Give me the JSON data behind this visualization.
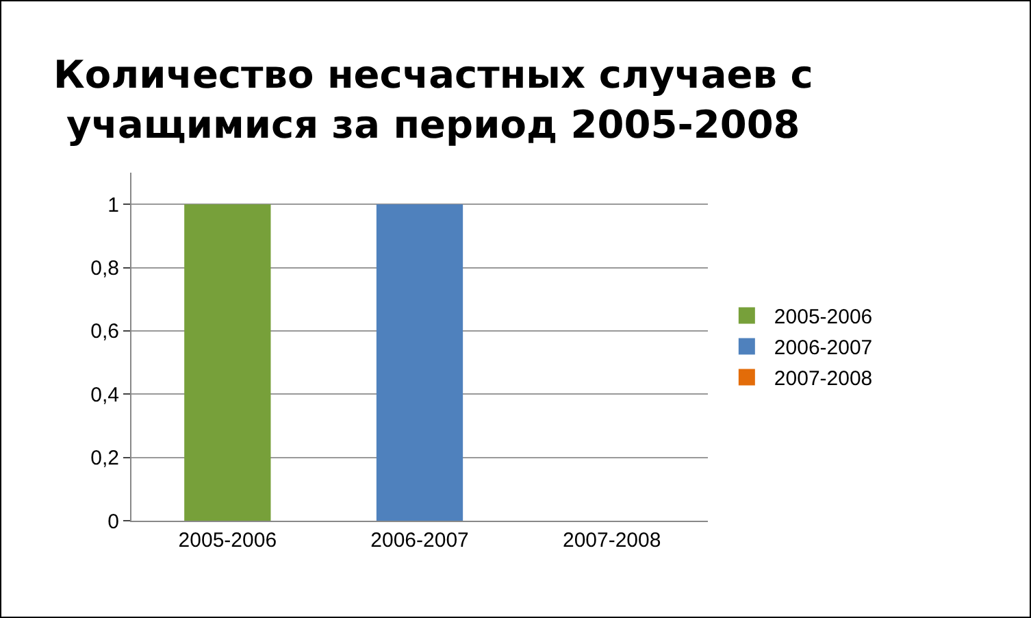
{
  "chart_data": {
    "type": "bar",
    "title": "Количество несчастных случаев с учащимися за период 2005-2008",
    "categories": [
      "2005-2006",
      "2006-2007",
      "2007-2008"
    ],
    "series": [
      {
        "name": "2005-2006",
        "color": "#77a03a",
        "values": [
          1,
          null,
          null
        ]
      },
      {
        "name": "2006-2007",
        "color": "#4f81bd",
        "values": [
          null,
          1,
          null
        ]
      },
      {
        "name": "2007-2008",
        "color": "#e36c09",
        "values": [
          null,
          null,
          0
        ]
      }
    ],
    "ylim": [
      0,
      1.1
    ],
    "yticks": [
      0,
      {
        "value": 0.2,
        "label": "0,2"
      },
      {
        "value": 0.4,
        "label": "0,4"
      },
      {
        "value": 0.6,
        "label": "0,6"
      },
      {
        "value": 0.8,
        "label": "0,8"
      },
      1
    ],
    "grid": "y",
    "legend": "right"
  }
}
